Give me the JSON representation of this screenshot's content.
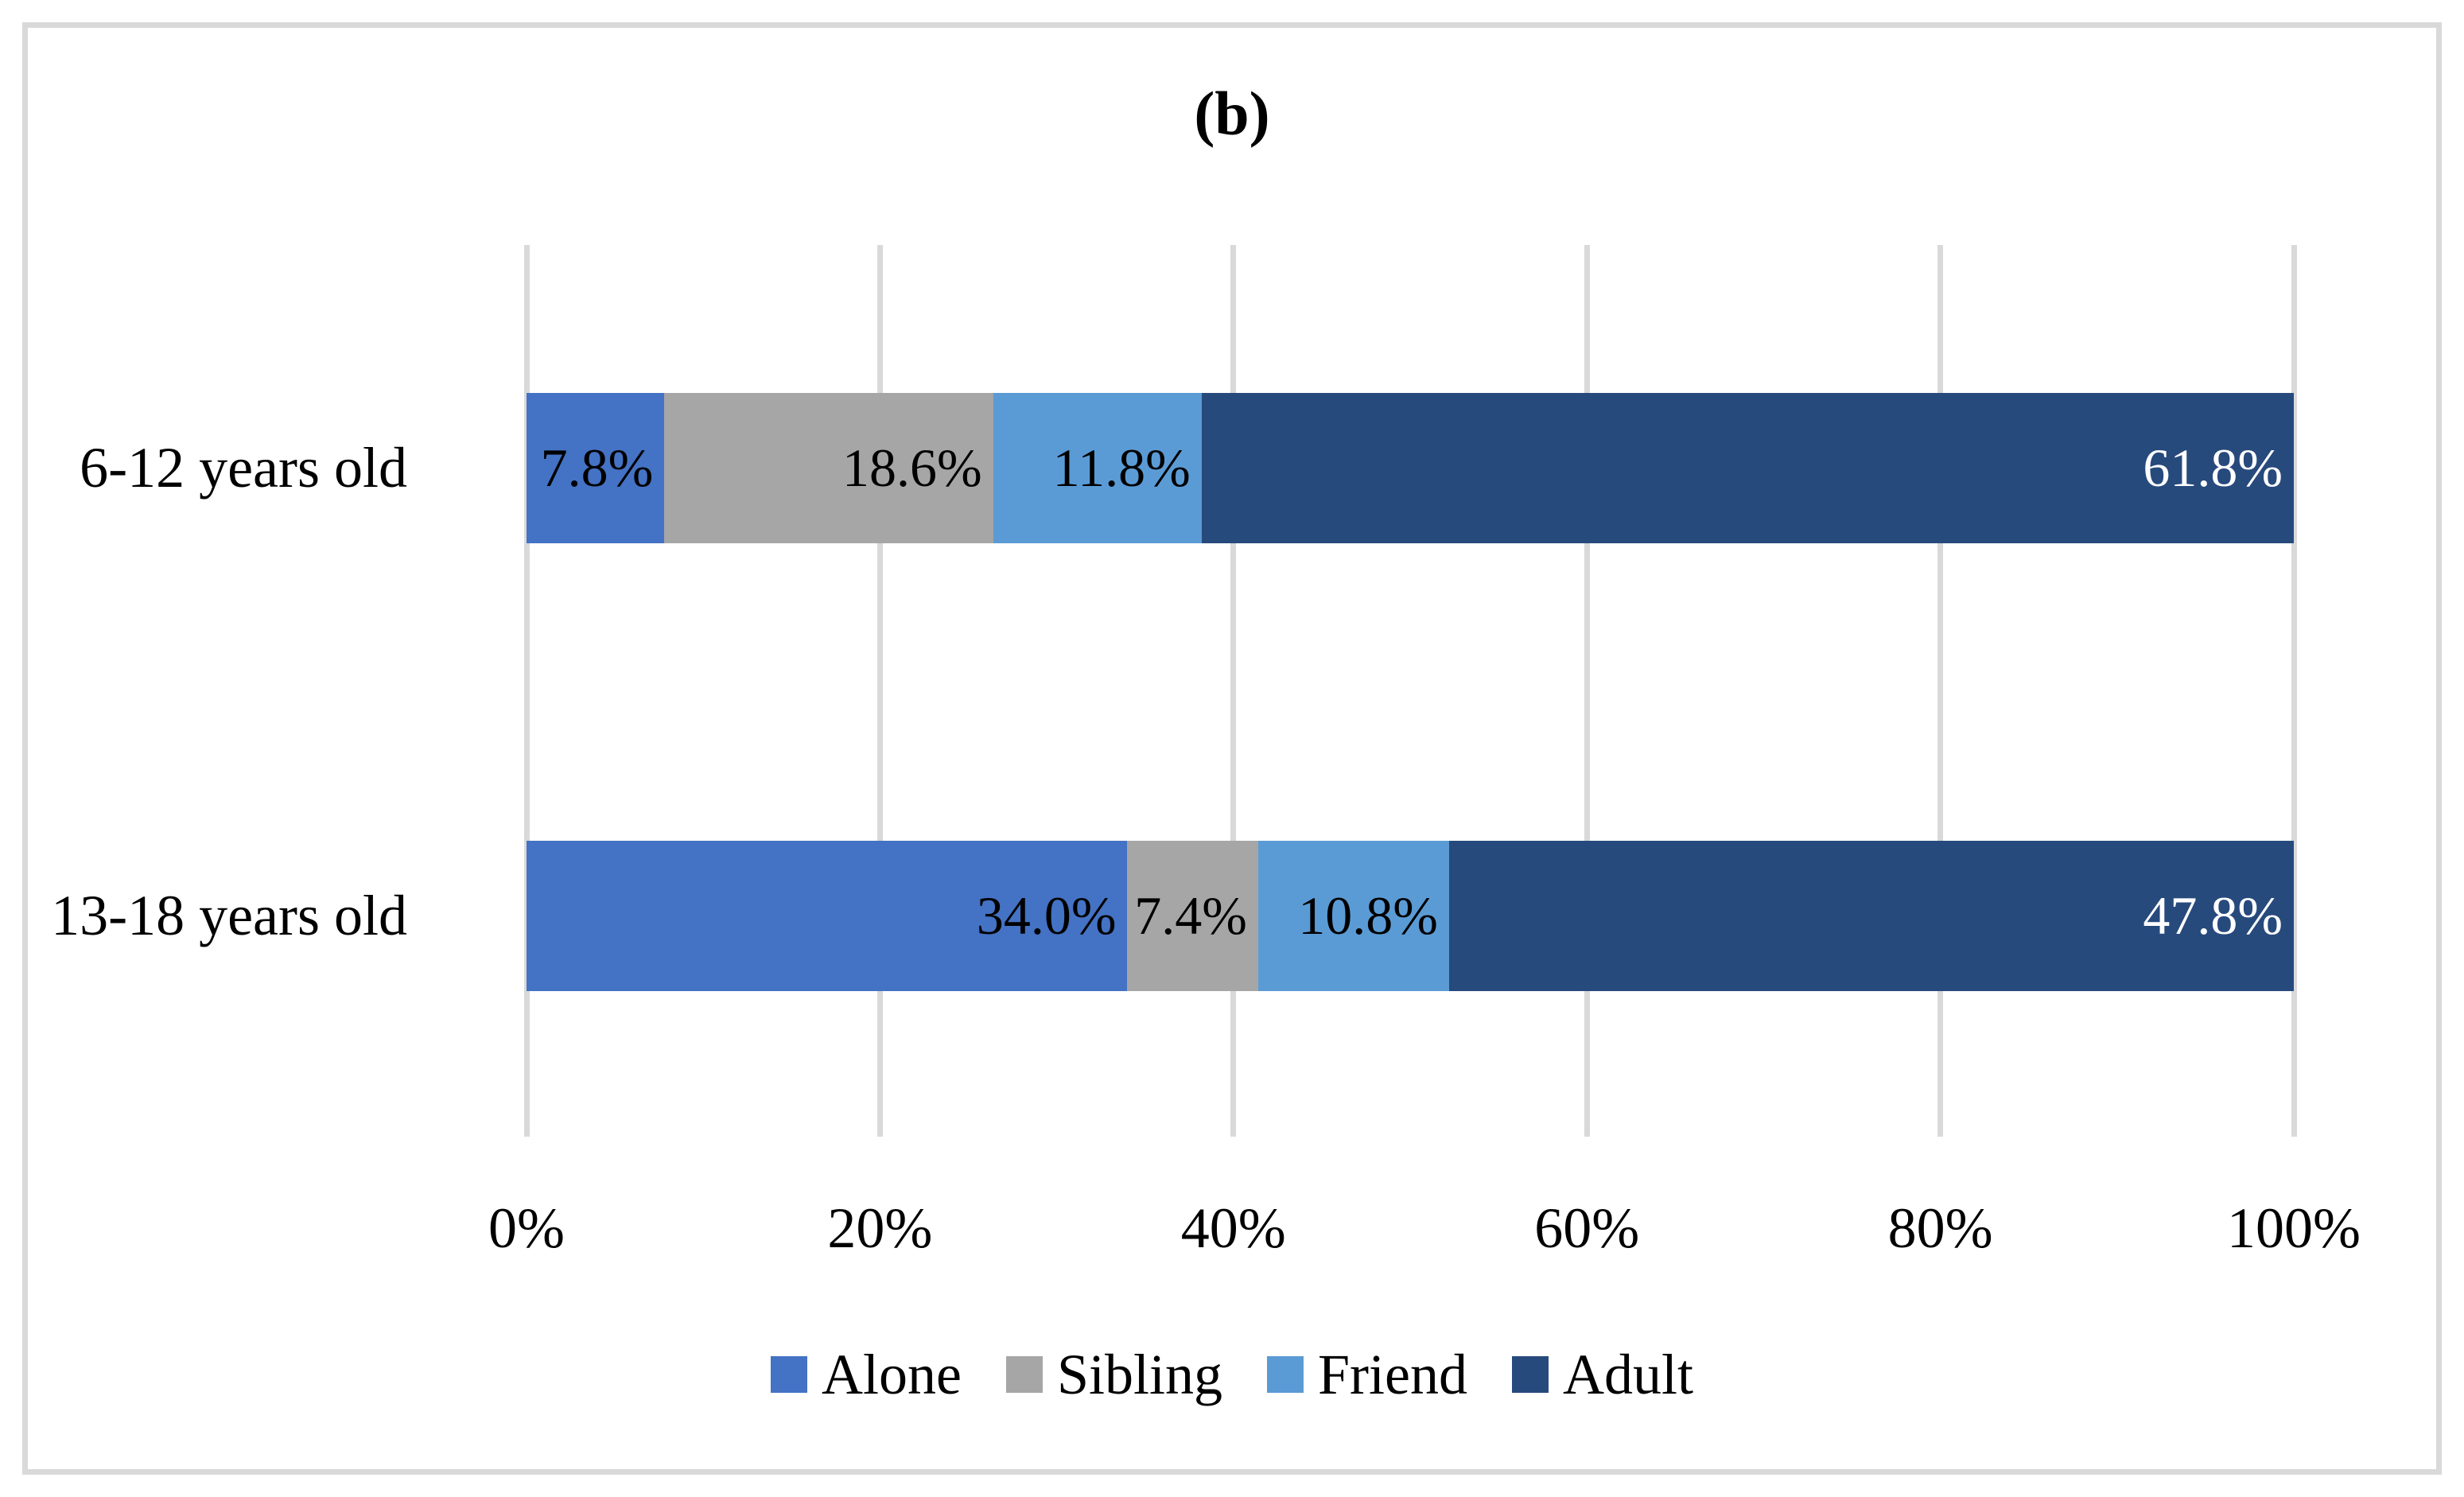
{
  "title": "(b)",
  "chart_data": {
    "type": "bar",
    "orientation": "horizontal",
    "stacked": true,
    "units": "percent",
    "title": "(b)",
    "categories": [
      "6-12 years old",
      "13-18 years old"
    ],
    "series": [
      {
        "name": "Alone",
        "color": "#4472C4",
        "label_color": "#000000",
        "values": [
          7.8,
          34.0
        ],
        "labels": [
          "7.8%",
          "34.0%"
        ]
      },
      {
        "name": "Sibling",
        "color": "#A6A6A6",
        "label_color": "#000000",
        "values": [
          18.6,
          7.4
        ],
        "labels": [
          "18.6%",
          "7.4%"
        ]
      },
      {
        "name": "Friend",
        "color": "#5B9BD5",
        "label_color": "#000000",
        "values": [
          11.8,
          10.8
        ],
        "labels": [
          "11.8%",
          "10.8%"
        ]
      },
      {
        "name": "Adult",
        "color": "#274A7D",
        "label_color": "#FFFFFF",
        "values": [
          61.8,
          47.8
        ],
        "labels": [
          "61.8%",
          "47.8%"
        ]
      }
    ],
    "x_axis": {
      "min": 0,
      "max": 100,
      "tick_labels": [
        "0%",
        "20%",
        "40%",
        "60%",
        "80%",
        "100%"
      ]
    },
    "legend": {
      "position": "bottom",
      "entries": [
        "Alone",
        "Sibling",
        "Friend",
        "Adult"
      ]
    },
    "gridlines": "vertical-on"
  },
  "colors": {
    "background": "#FFFFFF",
    "border": "#D9D9D9",
    "gridline": "#D9D9D9"
  }
}
